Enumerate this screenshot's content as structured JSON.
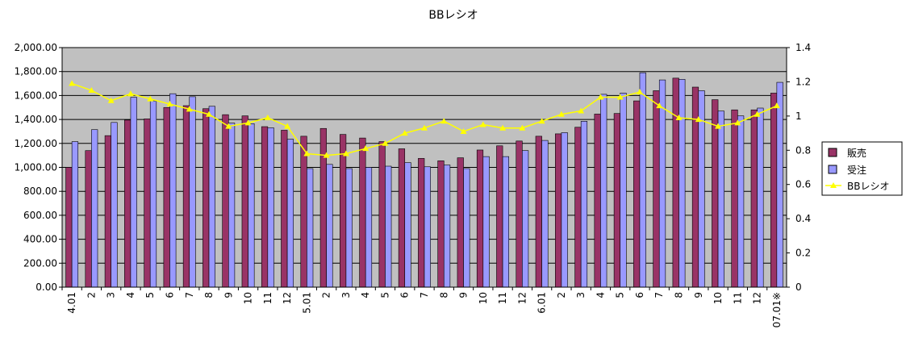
{
  "chart_data": {
    "type": "bar",
    "title": "BBレシオ",
    "categories": [
      "4.01",
      "2",
      "3",
      "4",
      "5",
      "6",
      "7",
      "8",
      "9",
      "10",
      "11",
      "12",
      "5.01",
      "2",
      "3",
      "4",
      "5",
      "6",
      "7",
      "8",
      "9",
      "10",
      "11",
      "12",
      "6.01",
      "2",
      "3",
      "4",
      "5",
      "6",
      "7",
      "8",
      "9",
      "10",
      "11",
      "12",
      "07.01※"
    ],
    "series": [
      {
        "name": "販売",
        "axis": "left",
        "color": "#993366",
        "values": [
          1000,
          1140,
          1265,
          1395,
          1405,
          1500,
          1515,
          1490,
          1440,
          1430,
          1340,
          1310,
          1260,
          1325,
          1275,
          1245,
          1215,
          1155,
          1075,
          1055,
          1080,
          1145,
          1180,
          1220,
          1260,
          1280,
          1335,
          1445,
          1450,
          1555,
          1640,
          1745,
          1670,
          1565,
          1480,
          1480,
          1620
        ]
      },
      {
        "name": "受注",
        "axis": "left",
        "color": "#9999ff",
        "values": [
          1215,
          1315,
          1375,
          1585,
          1555,
          1615,
          1590,
          1510,
          1370,
          1365,
          1330,
          1235,
          990,
          1025,
          990,
          1000,
          1010,
          1040,
          1005,
          1020,
          990,
          1090,
          1090,
          1140,
          1225,
          1290,
          1385,
          1610,
          1620,
          1790,
          1730,
          1735,
          1640,
          1470,
          1430,
          1495,
          1710
        ]
      },
      {
        "name": "BBレシオ",
        "axis": "right",
        "type": "line",
        "color": "#ffff00",
        "values": [
          1.19,
          1.15,
          1.09,
          1.13,
          1.1,
          1.07,
          1.04,
          1.01,
          0.94,
          0.96,
          0.99,
          0.94,
          0.78,
          0.77,
          0.78,
          0.81,
          0.84,
          0.9,
          0.93,
          0.97,
          0.91,
          0.95,
          0.93,
          0.93,
          0.97,
          1.01,
          1.03,
          1.11,
          1.11,
          1.14,
          1.06,
          0.99,
          0.98,
          0.94,
          0.96,
          1.01,
          1.06
        ]
      }
    ],
    "y_left": {
      "min": 0,
      "max": 2000,
      "step": 200,
      "tick_labels": [
        "0.00",
        "200.00",
        "400.00",
        "600.00",
        "800.00",
        "1,000.00",
        "1,200.00",
        "1,400.00",
        "1,600.00",
        "1,800.00",
        "2,000.00"
      ]
    },
    "y_right": {
      "min": 0,
      "max": 1.4,
      "step": 0.2,
      "tick_labels": [
        "0",
        "0.2",
        "0.4",
        "0.6",
        "0.8",
        "1",
        "1.2",
        "1.4"
      ]
    },
    "grid": true,
    "plot_background": "#c0c0c0",
    "legend_position": "right"
  }
}
